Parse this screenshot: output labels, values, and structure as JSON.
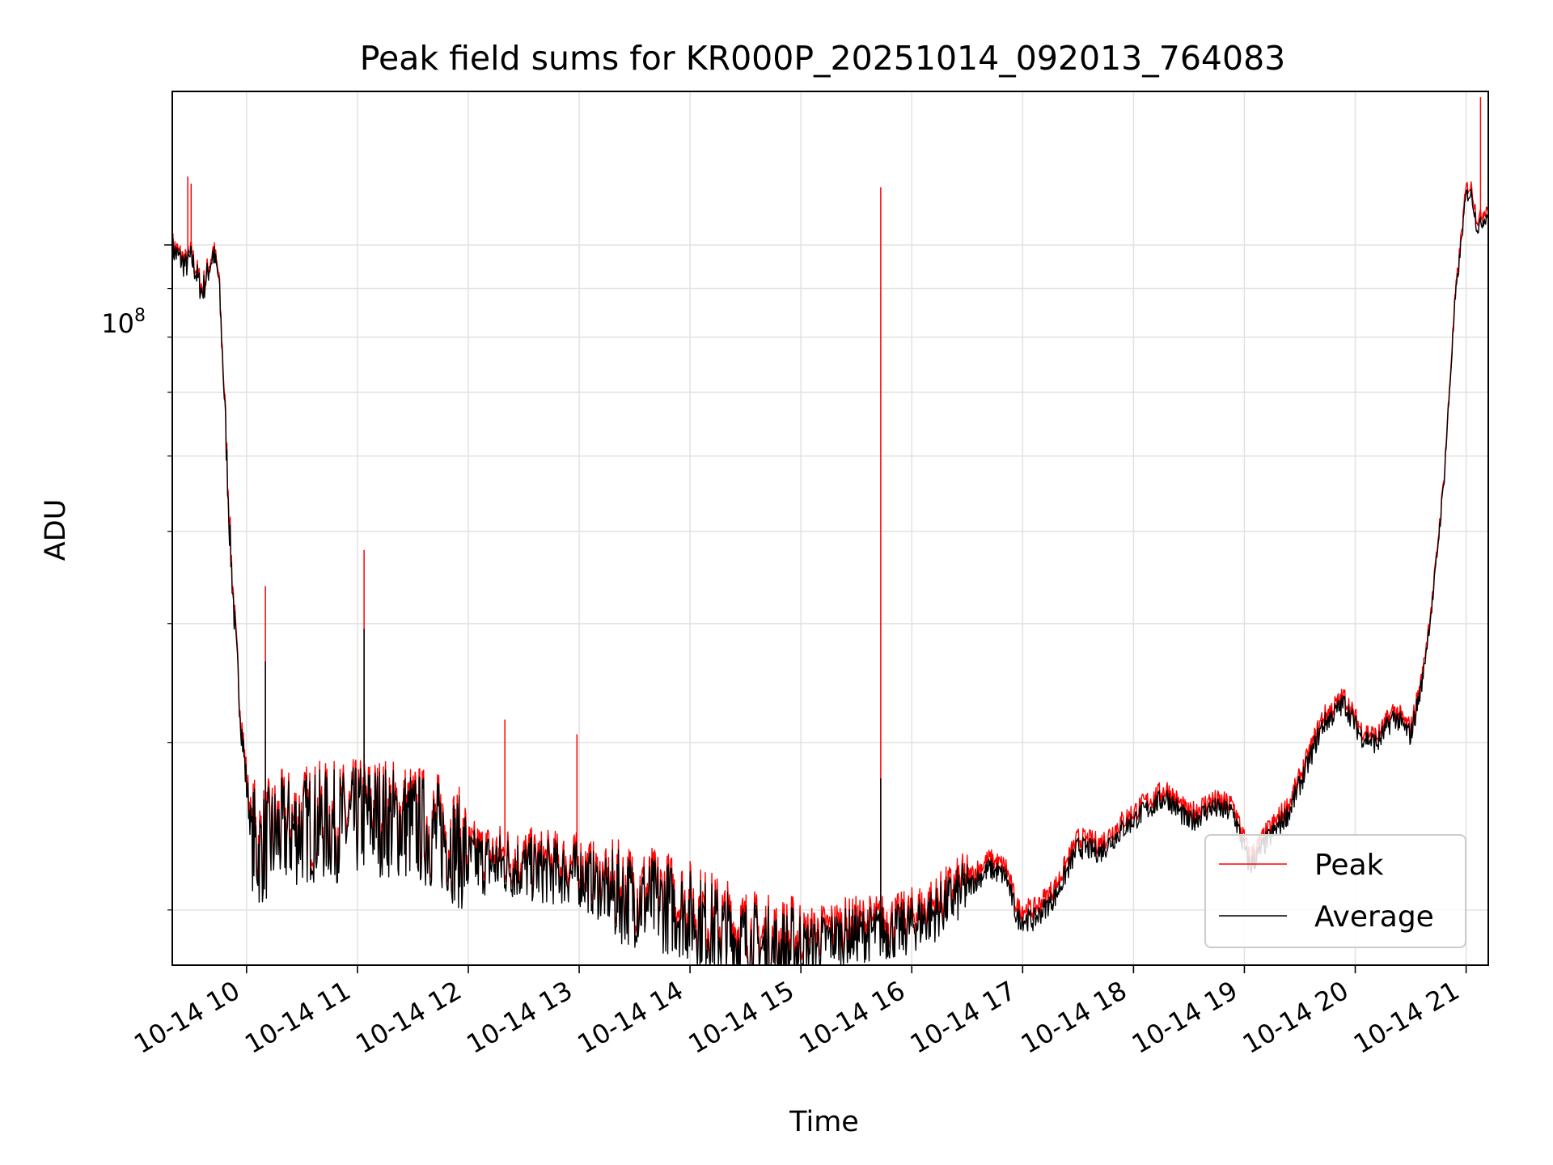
{
  "chart_data": {
    "type": "line",
    "title": "Peak field sums for KR000P_20251014_092013_764083",
    "xlabel": "Time",
    "ylabel": "ADU",
    "x_unit": "hour of 2025-10-14",
    "xlim": [
      9.33,
      21.2
    ],
    "ylim": [
      17500000,
      145000000
    ],
    "yscale": "log",
    "y_tick_label": {
      "base": "10",
      "exponent": "8",
      "value": 100000000
    },
    "x_tick_labels": [
      "10-14 10",
      "10-14 11",
      "10-14 12",
      "10-14 13",
      "10-14 14",
      "10-14 15",
      "10-14 16",
      "10-14 17",
      "10-14 18",
      "10-14 19",
      "10-14 20",
      "10-14 21"
    ],
    "x_ticks": [
      10,
      11,
      12,
      13,
      14,
      15,
      16,
      17,
      18,
      19,
      20,
      21
    ],
    "y_minor_grid": [
      20000000,
      30000000,
      40000000,
      50000000,
      60000000,
      70000000,
      80000000,
      90000000
    ],
    "grid": true,
    "legend_position": "lower-right",
    "series": [
      {
        "name": "Peak",
        "color": "#ff0000",
        "keypoints": [
          [
            9.33,
            100000000
          ],
          [
            9.45,
            96000000
          ],
          [
            9.5,
            98000000
          ],
          [
            9.6,
            90000000
          ],
          [
            9.7,
            99000000
          ],
          [
            9.75,
            93000000
          ],
          [
            9.8,
            70000000
          ],
          [
            9.85,
            50000000
          ],
          [
            9.9,
            39000000
          ],
          [
            9.95,
            32000000
          ],
          [
            10.0,
            27500000
          ],
          [
            10.05,
            24500000
          ],
          [
            10.1,
            23500000
          ],
          [
            10.3,
            24500000
          ],
          [
            10.6,
            25000000
          ],
          [
            10.9,
            25000000
          ],
          [
            11.1,
            25500000
          ],
          [
            11.5,
            25000000
          ],
          [
            11.8,
            24200000
          ],
          [
            12.0,
            23000000
          ],
          [
            12.3,
            22800000
          ],
          [
            12.6,
            22500000
          ],
          [
            13.0,
            22300000
          ],
          [
            13.3,
            21200000
          ],
          [
            13.6,
            20900000
          ],
          [
            13.9,
            20500000
          ],
          [
            14.2,
            19600000
          ],
          [
            14.5,
            18900000
          ],
          [
            14.8,
            18400000
          ],
          [
            15.0,
            18700000
          ],
          [
            15.3,
            19200000
          ],
          [
            15.6,
            19400000
          ],
          [
            15.9,
            19500000
          ],
          [
            16.2,
            20300000
          ],
          [
            16.5,
            21600000
          ],
          [
            16.7,
            22600000
          ],
          [
            16.85,
            22200000
          ],
          [
            16.95,
            20100000
          ],
          [
            17.1,
            20000000
          ],
          [
            17.3,
            21200000
          ],
          [
            17.5,
            23800000
          ],
          [
            17.7,
            23500000
          ],
          [
            17.9,
            24800000
          ],
          [
            18.1,
            25900000
          ],
          [
            18.3,
            26800000
          ],
          [
            18.5,
            25200000
          ],
          [
            18.7,
            26100000
          ],
          [
            18.9,
            25800000
          ],
          [
            19.05,
            22700000
          ],
          [
            19.2,
            24100000
          ],
          [
            19.4,
            25800000
          ],
          [
            19.55,
            28500000
          ],
          [
            19.7,
            31800000
          ],
          [
            19.9,
            33500000
          ],
          [
            20.05,
            31000000
          ],
          [
            20.2,
            30400000
          ],
          [
            20.35,
            32500000
          ],
          [
            20.5,
            31000000
          ],
          [
            20.6,
            35000000
          ],
          [
            20.7,
            43000000
          ],
          [
            20.8,
            57000000
          ],
          [
            20.9,
            88000000
          ],
          [
            21.0,
            115000000
          ],
          [
            21.05,
            115000000
          ],
          [
            21.1,
            106000000
          ],
          [
            21.2,
            110000000
          ]
        ],
        "spikes": [
          [
            9.47,
            118000000
          ],
          [
            9.5,
            116000000
          ],
          [
            10.17,
            43800000
          ],
          [
            11.06,
            47800000
          ],
          [
            12.33,
            31700000
          ],
          [
            12.98,
            30600000
          ],
          [
            15.72,
            115000000
          ],
          [
            21.13,
            143000000
          ]
        ]
      },
      {
        "name": "Average",
        "color": "#000000",
        "keypoints": [
          [
            9.33,
            99000000
          ],
          [
            9.45,
            95000000
          ],
          [
            9.5,
            97000000
          ],
          [
            9.6,
            89000000
          ],
          [
            9.7,
            98000000
          ],
          [
            9.75,
            92000000
          ],
          [
            9.8,
            69000000
          ],
          [
            9.85,
            49000000
          ],
          [
            9.9,
            38500000
          ],
          [
            9.95,
            31500000
          ],
          [
            10.0,
            27000000
          ],
          [
            10.05,
            24000000
          ],
          [
            10.1,
            23000000
          ],
          [
            10.3,
            24000000
          ],
          [
            10.6,
            24500000
          ],
          [
            10.9,
            24500000
          ],
          [
            11.1,
            25000000
          ],
          [
            11.5,
            24500000
          ],
          [
            11.8,
            23700000
          ],
          [
            12.0,
            22500000
          ],
          [
            12.3,
            22300000
          ],
          [
            12.6,
            22000000
          ],
          [
            13.0,
            21800000
          ],
          [
            13.3,
            20700000
          ],
          [
            13.6,
            20400000
          ],
          [
            13.9,
            20000000
          ],
          [
            14.2,
            19100000
          ],
          [
            14.5,
            18400000
          ],
          [
            14.8,
            17900000
          ],
          [
            15.0,
            18200000
          ],
          [
            15.3,
            18700000
          ],
          [
            15.6,
            18900000
          ],
          [
            15.9,
            19000000
          ],
          [
            16.2,
            19800000
          ],
          [
            16.5,
            21100000
          ],
          [
            16.7,
            22100000
          ],
          [
            16.85,
            21700000
          ],
          [
            16.95,
            19600000
          ],
          [
            17.1,
            19500000
          ],
          [
            17.3,
            20700000
          ],
          [
            17.5,
            23300000
          ],
          [
            17.7,
            23000000
          ],
          [
            17.9,
            24300000
          ],
          [
            18.1,
            25400000
          ],
          [
            18.3,
            26300000
          ],
          [
            18.5,
            24700000
          ],
          [
            18.7,
            25600000
          ],
          [
            18.9,
            25300000
          ],
          [
            19.05,
            22200000
          ],
          [
            19.2,
            23600000
          ],
          [
            19.4,
            25300000
          ],
          [
            19.55,
            28000000
          ],
          [
            19.7,
            31200000
          ],
          [
            19.9,
            33000000
          ],
          [
            20.05,
            30500000
          ],
          [
            20.2,
            29900000
          ],
          [
            20.35,
            32000000
          ],
          [
            20.5,
            30500000
          ],
          [
            20.6,
            34500000
          ],
          [
            20.7,
            42500000
          ],
          [
            20.8,
            56500000
          ],
          [
            20.9,
            87000000
          ],
          [
            21.0,
            113000000
          ],
          [
            21.05,
            113000000
          ],
          [
            21.1,
            104000000
          ],
          [
            21.2,
            108000000
          ]
        ],
        "spikes": [
          [
            10.17,
            36500000
          ],
          [
            11.06,
            39500000
          ],
          [
            15.72,
            27500000
          ]
        ]
      }
    ]
  }
}
